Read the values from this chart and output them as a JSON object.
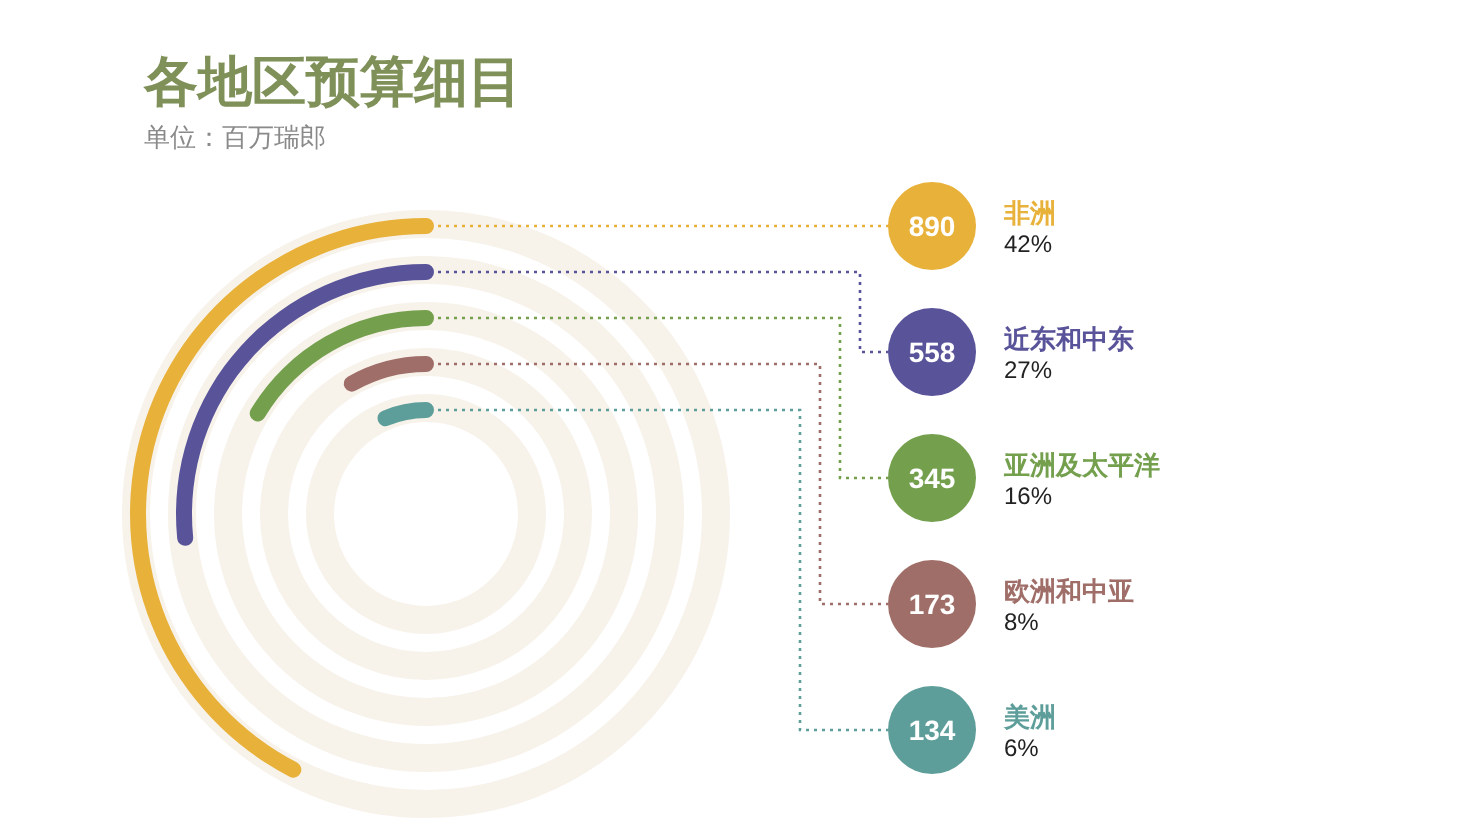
{
  "chart_data": {
    "type": "other",
    "title": "各地区预算细目",
    "subtitle": "单位：百万瑞郎",
    "categories": [
      "非洲",
      "近东和中东",
      "亚洲及太平洋",
      "欧洲和中亚",
      "美洲"
    ],
    "values": [
      890,
      558,
      345,
      173,
      134
    ],
    "colors": [
      "#e8b13a",
      "#59539a",
      "#74a04e",
      "#a06e68",
      "#5e9e9a"
    ],
    "data_labels": true,
    "annotations": [
      "42%",
      "27%",
      "16%",
      "8%",
      "6%"
    ]
  }
}
